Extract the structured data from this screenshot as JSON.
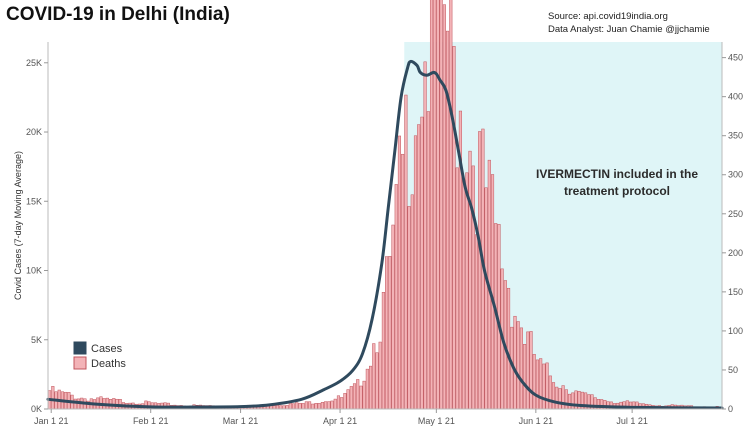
{
  "header": {
    "title": "COVID-19 in Delhi (India)",
    "source": "Source: api.covid19india.org",
    "analyst": "Data Analyst:  Juan Chamie @jjchamie"
  },
  "chart_data": {
    "type": "bar+line",
    "title": "COVID-19 in Delhi (India)",
    "ylabel_left": "Covid Cases (7-day Moving Average)",
    "ylabel_right": "",
    "ylim_left": [
      0,
      26500
    ],
    "ylim_right": [
      0,
      470
    ],
    "x_start": "2020-12-31",
    "x_end": "2021-07-29",
    "x_ticks": [
      "Jan 1 21",
      "Feb 1 21",
      "Mar 1 21",
      "Apr 1 21",
      "May 1 21",
      "Jun 1 21",
      "Jul 1 21"
    ],
    "left_ticks": [
      "0K",
      "5K",
      "10K",
      "15K",
      "20K",
      "25K"
    ],
    "right_ticks": [
      "0",
      "50",
      "100",
      "150",
      "200",
      "250",
      "300",
      "350",
      "400",
      "450"
    ],
    "annotation": "IVERMECTIN included in the treatment protocol",
    "shaded_region": {
      "from": "2021-04-21",
      "to": "2021-07-29",
      "color": "#dff5f7"
    },
    "legend": [
      {
        "name": "Cases",
        "color": "#2f4a5e",
        "key": "cases"
      },
      {
        "name": "Deaths",
        "color": "#f3b3b7",
        "key": "deaths"
      }
    ],
    "legend_position": "bottom-left",
    "cases_series": {
      "name": "Cases",
      "color": "#2f4a5e",
      "points": [
        [
          "2020-12-31",
          700
        ],
        [
          "2021-01-15",
          350
        ],
        [
          "2021-02-01",
          150
        ],
        [
          "2021-02-15",
          140
        ],
        [
          "2021-03-01",
          170
        ],
        [
          "2021-03-10",
          300
        ],
        [
          "2021-03-20",
          700
        ],
        [
          "2021-03-27",
          1400
        ],
        [
          "2021-04-01",
          2000
        ],
        [
          "2021-04-05",
          2800
        ],
        [
          "2021-04-08",
          4000
        ],
        [
          "2021-04-11",
          6500
        ],
        [
          "2021-04-14",
          10500
        ],
        [
          "2021-04-16",
          14500
        ],
        [
          "2021-04-18",
          18500
        ],
        [
          "2021-04-20",
          22500
        ],
        [
          "2021-04-22",
          24600
        ],
        [
          "2021-04-23",
          25100
        ],
        [
          "2021-04-25",
          24800
        ],
        [
          "2021-04-26",
          24300
        ],
        [
          "2021-04-28",
          24100
        ],
        [
          "2021-04-30",
          24300
        ],
        [
          "2021-05-01",
          24200
        ],
        [
          "2021-05-02",
          23800
        ],
        [
          "2021-05-04",
          23000
        ],
        [
          "2021-05-06",
          21000
        ],
        [
          "2021-05-08",
          18500
        ],
        [
          "2021-05-10",
          16000
        ],
        [
          "2021-05-12",
          14500
        ],
        [
          "2021-05-14",
          12500
        ],
        [
          "2021-05-16",
          10000
        ],
        [
          "2021-05-19",
          7500
        ],
        [
          "2021-05-22",
          4800
        ],
        [
          "2021-05-25",
          3000
        ],
        [
          "2021-05-28",
          1900
        ],
        [
          "2021-06-01",
          1000
        ],
        [
          "2021-06-07",
          500
        ],
        [
          "2021-06-15",
          250
        ],
        [
          "2021-07-01",
          120
        ],
        [
          "2021-07-29",
          70
        ]
      ]
    },
    "deaths_series": {
      "name": "Deaths",
      "color": "#f3b3b7",
      "points": [
        [
          "2020-12-31",
          20
        ],
        [
          "2021-01-10",
          12
        ],
        [
          "2021-01-25",
          8
        ],
        [
          "2021-02-10",
          4
        ],
        [
          "2021-03-01",
          3
        ],
        [
          "2021-03-20",
          6
        ],
        [
          "2021-04-01",
          12
        ],
        [
          "2021-04-06",
          25
        ],
        [
          "2021-04-10",
          60
        ],
        [
          "2021-04-14",
          110
        ],
        [
          "2021-04-17",
          170
        ],
        [
          "2021-04-20",
          260
        ],
        [
          "2021-04-22",
          310
        ],
        [
          "2021-04-25",
          370
        ],
        [
          "2021-04-28",
          395
        ],
        [
          "2021-04-30",
          420
        ],
        [
          "2021-05-02",
          440
        ],
        [
          "2021-05-04",
          410
        ],
        [
          "2021-05-06",
          360
        ],
        [
          "2021-05-08",
          330
        ],
        [
          "2021-05-10",
          310
        ],
        [
          "2021-05-13",
          270
        ],
        [
          "2021-05-16",
          230
        ],
        [
          "2021-05-19",
          190
        ],
        [
          "2021-05-22",
          150
        ],
        [
          "2021-05-25",
          110
        ],
        [
          "2021-05-28",
          80
        ],
        [
          "2021-06-02",
          45
        ],
        [
          "2021-06-08",
          28
        ],
        [
          "2021-06-15",
          15
        ],
        [
          "2021-06-25",
          8
        ],
        [
          "2021-07-10",
          4
        ],
        [
          "2021-07-29",
          2
        ]
      ]
    }
  }
}
